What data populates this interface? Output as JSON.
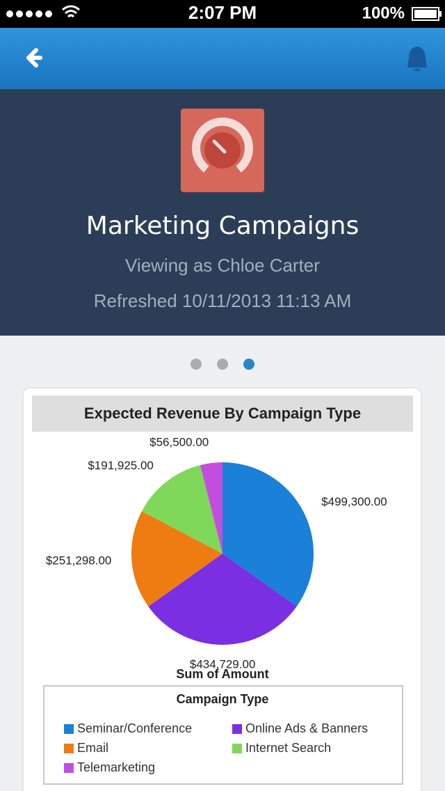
{
  "status_bar": {
    "time": "2:07 PM",
    "battery": "100%"
  },
  "header": {
    "title": "Marketing Campaigns",
    "viewing": "Viewing as Chloe Carter",
    "refreshed": "Refreshed 10/11/2013 11:13 AM"
  },
  "chart_data": {
    "type": "pie",
    "title": "Expected Revenue By Campaign Type",
    "x_label": "Sum of Amount",
    "legend_title": "Campaign Type",
    "categories": [
      "Seminar/Conference",
      "Online Ads & Banners",
      "Email",
      "Internet Search",
      "Telemarketing"
    ],
    "values": [
      499300,
      434729,
      251298,
      191925,
      56500
    ],
    "value_labels": [
      "$499,300.00",
      "$434,729.00",
      "$251,298.00",
      "$191,925.00",
      "$56,500.00"
    ],
    "colors": [
      "#1a80d8",
      "#7b2fe2",
      "#ee7c12",
      "#80d85a",
      "#c24ee0"
    ]
  }
}
